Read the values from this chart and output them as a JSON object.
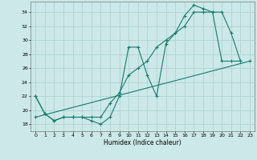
{
  "xlabel": "Humidex (Indice chaleur)",
  "xlim": [
    -0.5,
    23.5
  ],
  "ylim": [
    17,
    35.5
  ],
  "yticks": [
    18,
    20,
    22,
    24,
    26,
    28,
    30,
    32,
    34
  ],
  "xticks": [
    0,
    1,
    2,
    3,
    4,
    5,
    6,
    7,
    8,
    9,
    10,
    11,
    12,
    13,
    14,
    15,
    16,
    17,
    18,
    19,
    20,
    21,
    22,
    23
  ],
  "line_color": "#1a7a6e",
  "bg_color": "#cce8e8",
  "grid_color": "#aacfcf",
  "line1_y": [
    22,
    19.5,
    18.5,
    19,
    19,
    19,
    18.5,
    18,
    19,
    22,
    29,
    29,
    25,
    22,
    29.5,
    31,
    33.5,
    35,
    34.5,
    34,
    34,
    31,
    27
  ],
  "line2_y": [
    22,
    19.5,
    18.5,
    19,
    19,
    19,
    19,
    19,
    21,
    22.5,
    25,
    26,
    27,
    29,
    30,
    31,
    32,
    34,
    34,
    34,
    27,
    27,
    27
  ]
}
